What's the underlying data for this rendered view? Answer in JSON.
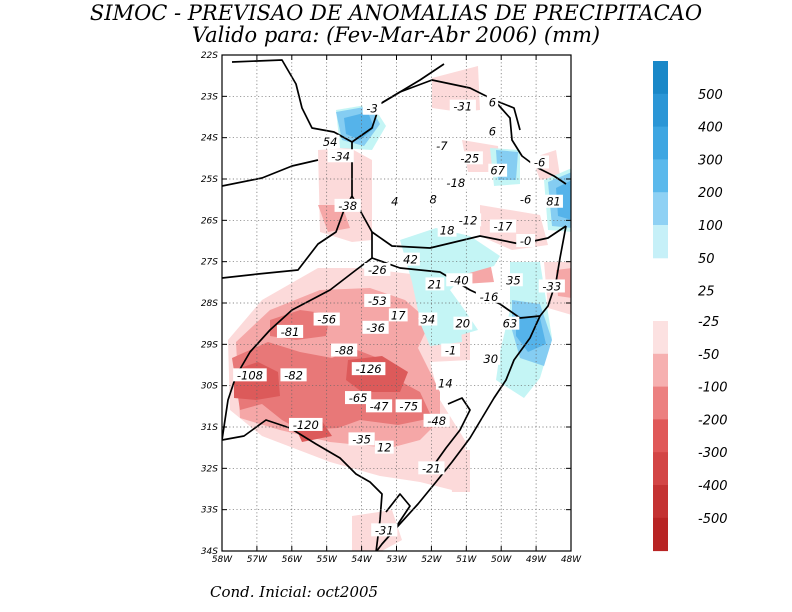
{
  "title": {
    "line1": "SIMOC - PREVISAO DE ANOMALIAS DE PRECIPITACAO",
    "line2": "Valido para: (Fev-Mar-Abr 2006) (mm)"
  },
  "footer": "Cond. Inicial: oct2005",
  "map": {
    "lat_range": [
      -34,
      -22
    ],
    "lon_range": [
      -58,
      -48
    ],
    "lat_ticks": [
      "22S",
      "23S",
      "24S",
      "25S",
      "26S",
      "27S",
      "28S",
      "29S",
      "30S",
      "31S",
      "32S",
      "33S",
      "34S"
    ],
    "lon_ticks": [
      "58W",
      "57W",
      "56W",
      "55W",
      "54W",
      "53W",
      "52W",
      "51W",
      "50W",
      "49W",
      "48W"
    ],
    "labels": [
      {
        "text": "-3",
        "lon": -53.7,
        "lat": -23.3
      },
      {
        "text": "-31",
        "lon": -51.1,
        "lat": -23.25
      },
      {
        "text": "6",
        "lon": -50.25,
        "lat": -23.15
      },
      {
        "text": "6",
        "lon": -50.25,
        "lat": -23.85
      },
      {
        "text": "54",
        "lon": -54.9,
        "lat": -24.1
      },
      {
        "text": "-7",
        "lon": -51.7,
        "lat": -24.2
      },
      {
        "text": "-34",
        "lon": -54.6,
        "lat": -24.45
      },
      {
        "text": "-25",
        "lon": -50.9,
        "lat": -24.5
      },
      {
        "text": "67",
        "lon": -50.1,
        "lat": -24.8
      },
      {
        "text": "-6",
        "lon": -48.9,
        "lat": -24.6
      },
      {
        "text": "-18",
        "lon": -51.3,
        "lat": -25.1
      },
      {
        "text": "-6",
        "lon": -49.3,
        "lat": -25.5
      },
      {
        "text": "81",
        "lon": -48.5,
        "lat": -25.55
      },
      {
        "text": "4",
        "lon": -53.05,
        "lat": -25.55
      },
      {
        "text": "8",
        "lon": -51.95,
        "lat": -25.5
      },
      {
        "text": "-38",
        "lon": -54.4,
        "lat": -25.65
      },
      {
        "text": "-12",
        "lon": -50.95,
        "lat": -26.0
      },
      {
        "text": "-17",
        "lon": -49.95,
        "lat": -26.15
      },
      {
        "text": "18",
        "lon": -51.55,
        "lat": -26.25
      },
      {
        "text": "-0",
        "lon": -49.3,
        "lat": -26.5
      },
      {
        "text": "42",
        "lon": -52.6,
        "lat": -26.95
      },
      {
        "text": "-26",
        "lon": -53.55,
        "lat": -27.2
      },
      {
        "text": "35",
        "lon": -49.65,
        "lat": -27.45
      },
      {
        "text": "21",
        "lon": -51.9,
        "lat": -27.55
      },
      {
        "text": "-40",
        "lon": -51.2,
        "lat": -27.45
      },
      {
        "text": "-33",
        "lon": -48.55,
        "lat": -27.6
      },
      {
        "text": "-16",
        "lon": -50.35,
        "lat": -27.85
      },
      {
        "text": "-53",
        "lon": -53.55,
        "lat": -27.95
      },
      {
        "text": "17",
        "lon": -52.95,
        "lat": -28.3
      },
      {
        "text": "34",
        "lon": -52.1,
        "lat": -28.4
      },
      {
        "text": "20",
        "lon": -51.1,
        "lat": -28.5
      },
      {
        "text": "63",
        "lon": -49.75,
        "lat": -28.5
      },
      {
        "text": "-56",
        "lon": -55.0,
        "lat": -28.4
      },
      {
        "text": "-36",
        "lon": -53.6,
        "lat": -28.6
      },
      {
        "text": "-81",
        "lon": -56.05,
        "lat": -28.7
      },
      {
        "text": "-1",
        "lon": -51.45,
        "lat": -29.15
      },
      {
        "text": "-88",
        "lon": -54.5,
        "lat": -29.15
      },
      {
        "text": "30",
        "lon": -50.3,
        "lat": -29.35
      },
      {
        "text": "-126",
        "lon": -53.8,
        "lat": -29.6
      },
      {
        "text": "-108",
        "lon": -57.2,
        "lat": -29.75
      },
      {
        "text": "-82",
        "lon": -55.95,
        "lat": -29.75
      },
      {
        "text": "14",
        "lon": -51.6,
        "lat": -29.95
      },
      {
        "text": "-65",
        "lon": -54.1,
        "lat": -30.3
      },
      {
        "text": "-47",
        "lon": -53.5,
        "lat": -30.5
      },
      {
        "text": "-75",
        "lon": -52.65,
        "lat": -30.5
      },
      {
        "text": "-48",
        "lon": -51.85,
        "lat": -30.85
      },
      {
        "text": "-120",
        "lon": -55.6,
        "lat": -30.95
      },
      {
        "text": "-35",
        "lon": -54.0,
        "lat": -31.3
      },
      {
        "text": "12",
        "lon": -53.35,
        "lat": -31.5
      },
      {
        "text": "-21",
        "lon": -52.0,
        "lat": -32.0
      },
      {
        "text": "-31",
        "lon": -53.35,
        "lat": -33.5
      }
    ]
  },
  "colorbar": {
    "positive": {
      "labels": [
        "500",
        "400",
        "300",
        "200",
        "100",
        "50",
        "25"
      ],
      "colors": [
        "#1a88c8",
        "#2b96d6",
        "#3ea6e2",
        "#5bb9ec",
        "#8fd1f4",
        "#c6f0f8"
      ]
    },
    "negative": {
      "labels": [
        "-25",
        "-50",
        "-100",
        "-200",
        "-300",
        "-400",
        "-500"
      ],
      "colors": [
        "#fce1e1",
        "#f6b0b0",
        "#ec8080",
        "#e05858",
        "#d34545",
        "#c43232",
        "#b82424"
      ]
    }
  },
  "colors": {
    "lightCyan": "#c4f5f5",
    "midBlue": "#85cdf2",
    "blue": "#55b3ea",
    "pink": "#fcdada",
    "salmon": "#f5a7a7",
    "red": "#e87878",
    "darkRed": "#dc5a5a"
  }
}
